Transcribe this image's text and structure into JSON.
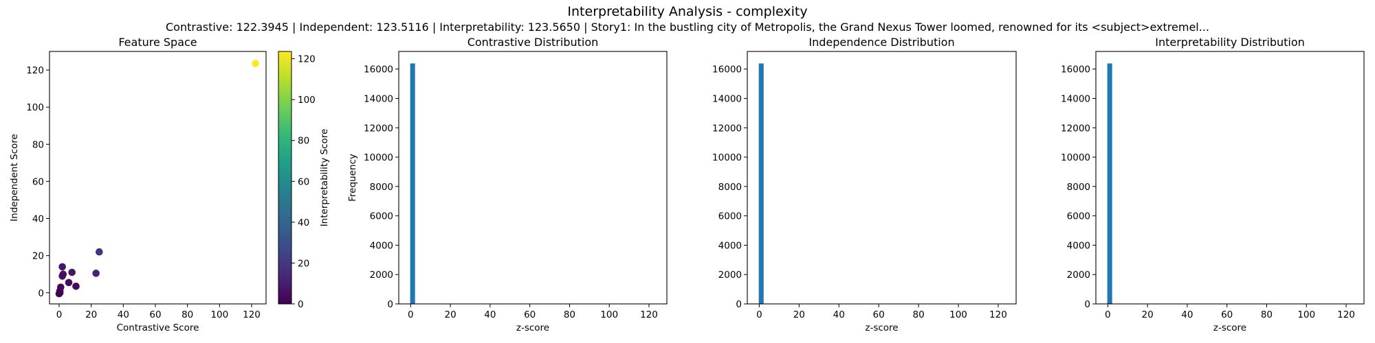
{
  "figure": {
    "title": "Interpretability Analysis - complexity",
    "subtitle": "Contrastive: 122.3945 | Independent: 123.5116 | Interpretability: 123.5650 | Story1: In the bustling city of Metropolis, the Grand Nexus Tower loomed, renowned for its <subject>extremel..."
  },
  "chart_data": [
    {
      "type": "scatter",
      "title": "Feature Space",
      "xlabel": "Contrastive Score",
      "ylabel": "Independent Score",
      "xlim": [
        -6,
        129
      ],
      "ylim": [
        -6,
        130
      ],
      "xticks": [
        0,
        20,
        40,
        60,
        80,
        100,
        120
      ],
      "yticks": [
        0,
        20,
        40,
        60,
        80,
        100,
        120
      ],
      "grid": false,
      "colormap": "viridis",
      "colorbar": {
        "label": "Interpretability Score",
        "range": [
          0,
          123.565
        ],
        "ticks": [
          0,
          20,
          40,
          60,
          80,
          100,
          120
        ]
      },
      "points": [
        {
          "x": 122.39,
          "y": 123.51,
          "c": 123.57
        },
        {
          "x": 25,
          "y": 22,
          "c": 18
        },
        {
          "x": 23,
          "y": 10.5,
          "c": 12
        },
        {
          "x": 2,
          "y": 14,
          "c": 8
        },
        {
          "x": 8,
          "y": 11,
          "c": 7
        },
        {
          "x": 2.5,
          "y": 10,
          "c": 6
        },
        {
          "x": 2,
          "y": 9,
          "c": 5
        },
        {
          "x": 6,
          "y": 5.5,
          "c": 4
        },
        {
          "x": 10.5,
          "y": 3.5,
          "c": 3
        },
        {
          "x": 1,
          "y": 3,
          "c": 2
        },
        {
          "x": 0.5,
          "y": 1,
          "c": 1.5
        },
        {
          "x": 0.5,
          "y": 0,
          "c": 1
        },
        {
          "x": 0,
          "y": -0.5,
          "c": 0.5
        }
      ]
    },
    {
      "type": "bar",
      "title": "Contrastive Distribution",
      "xlabel": "z-score",
      "ylabel": "Frequency",
      "xlim": [
        -6,
        129
      ],
      "ylim": [
        0,
        17200
      ],
      "xticks": [
        0,
        20,
        40,
        60,
        80,
        100,
        120
      ],
      "yticks": [
        0,
        2000,
        4000,
        6000,
        8000,
        10000,
        12000,
        14000,
        16000
      ],
      "bins": [
        {
          "start": -0.25,
          "end": 2.2,
          "count": 16384
        }
      ],
      "color": "#1f77b4"
    },
    {
      "type": "bar",
      "title": "Independence Distribution",
      "xlabel": "z-score",
      "ylabel": "",
      "xlim": [
        -6,
        129
      ],
      "ylim": [
        0,
        17200
      ],
      "xticks": [
        0,
        20,
        40,
        60,
        80,
        100,
        120
      ],
      "yticks": [
        0,
        2000,
        4000,
        6000,
        8000,
        10000,
        12000,
        14000,
        16000
      ],
      "bins": [
        {
          "start": -0.25,
          "end": 2.2,
          "count": 16384
        }
      ],
      "color": "#1f77b4"
    },
    {
      "type": "bar",
      "title": "Interpretability Distribution",
      "xlabel": "z-score",
      "ylabel": "",
      "xlim": [
        -6,
        129
      ],
      "ylim": [
        0,
        17200
      ],
      "xticks": [
        0,
        20,
        40,
        60,
        80,
        100,
        120
      ],
      "yticks": [
        0,
        2000,
        4000,
        6000,
        8000,
        10000,
        12000,
        14000,
        16000
      ],
      "bins": [
        {
          "start": -0.25,
          "end": 2.2,
          "count": 16384
        }
      ],
      "color": "#1f77b4"
    }
  ]
}
